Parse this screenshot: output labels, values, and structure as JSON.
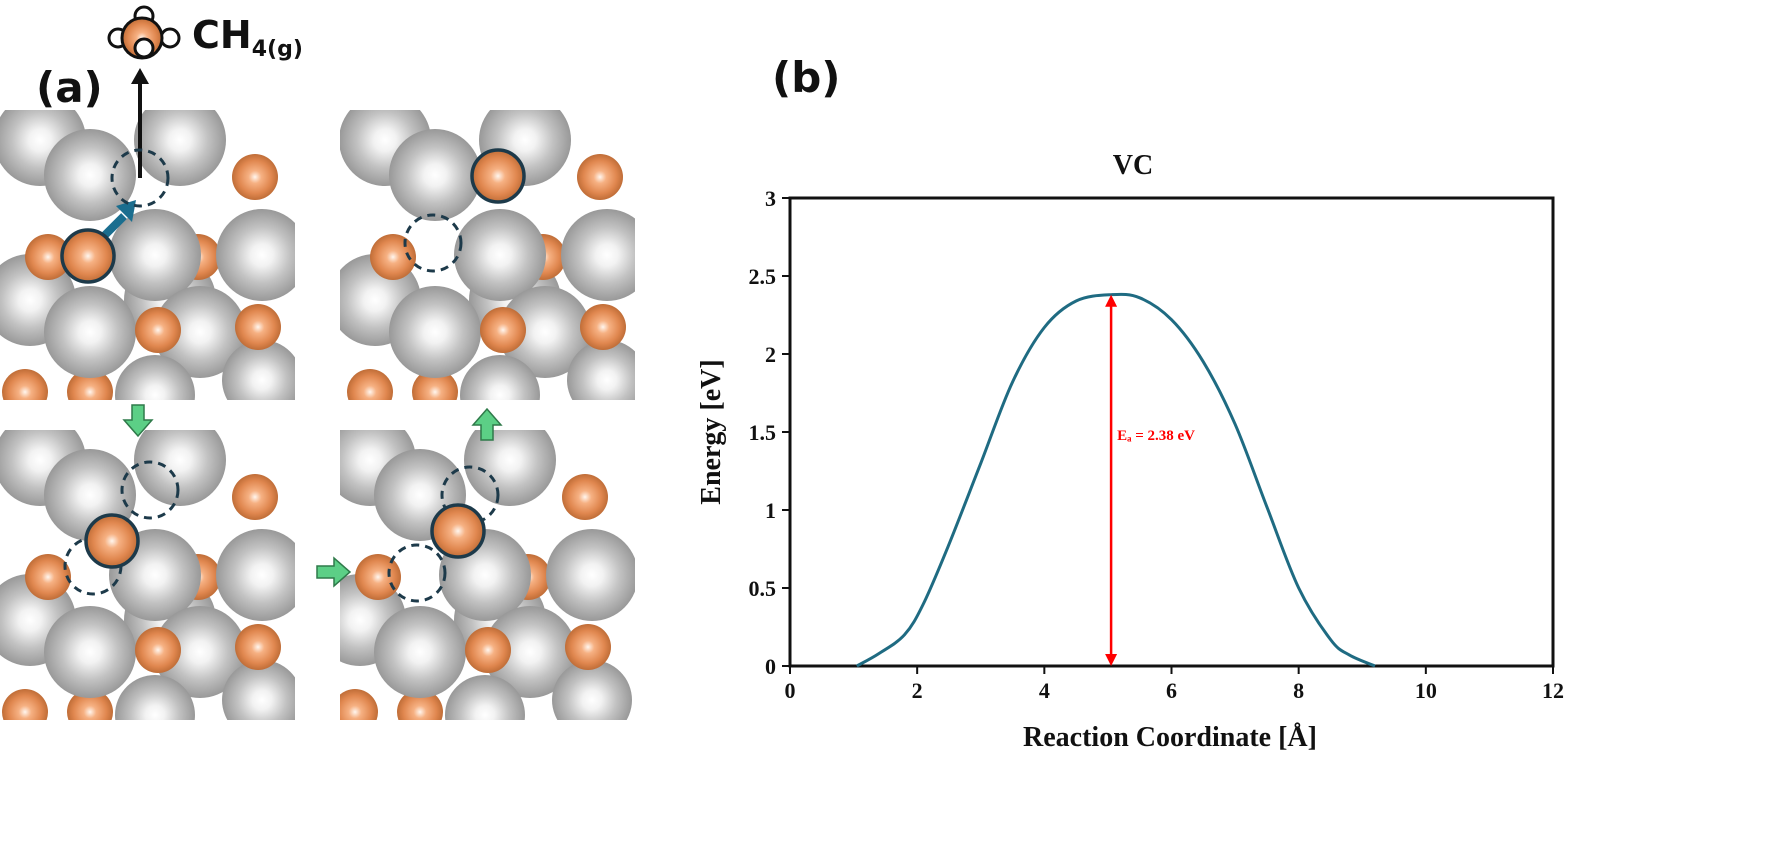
{
  "panels": {
    "a_label": "(a)",
    "b_label": "(b)"
  },
  "molecule": {
    "label_main": "CH",
    "label_sub": "4(g)"
  },
  "colors": {
    "vanadium": "#b4b4b4",
    "carbon": "#e0874f",
    "curve": "#1f6b82",
    "annotation": "#ff0000",
    "transition_arrow": "#5ccf86",
    "diffusion_arrow": "#1b6e8f"
  },
  "chart_data": {
    "type": "line",
    "title": "VC",
    "xlabel": "Reaction Coordinate [Å]",
    "ylabel": "Energy [eV]",
    "xlim": [
      0,
      12
    ],
    "ylim": [
      0,
      3
    ],
    "xticks": [
      "0",
      "2",
      "4",
      "6",
      "8",
      "10",
      "12"
    ],
    "yticks": [
      "0",
      "0.5",
      "1",
      "1.5",
      "2",
      "2.5",
      "3"
    ],
    "grid": false,
    "series": [
      {
        "x": [
          1.05,
          1.4,
          1.8,
          2.1,
          2.5,
          3.0,
          3.5,
          4.0,
          4.5,
          5.05,
          5.5,
          6.0,
          6.5,
          7.0,
          7.5,
          8.0,
          8.5,
          8.8,
          9.2
        ],
        "y": [
          0.0,
          0.08,
          0.2,
          0.4,
          0.78,
          1.3,
          1.82,
          2.17,
          2.34,
          2.38,
          2.36,
          2.22,
          1.95,
          1.55,
          1.02,
          0.5,
          0.17,
          0.07,
          0.0
        ]
      }
    ],
    "annotation": {
      "text": "Eₐ = 2.38 eV",
      "x": 5.05,
      "y_from": 0,
      "y_to": 2.38
    }
  }
}
